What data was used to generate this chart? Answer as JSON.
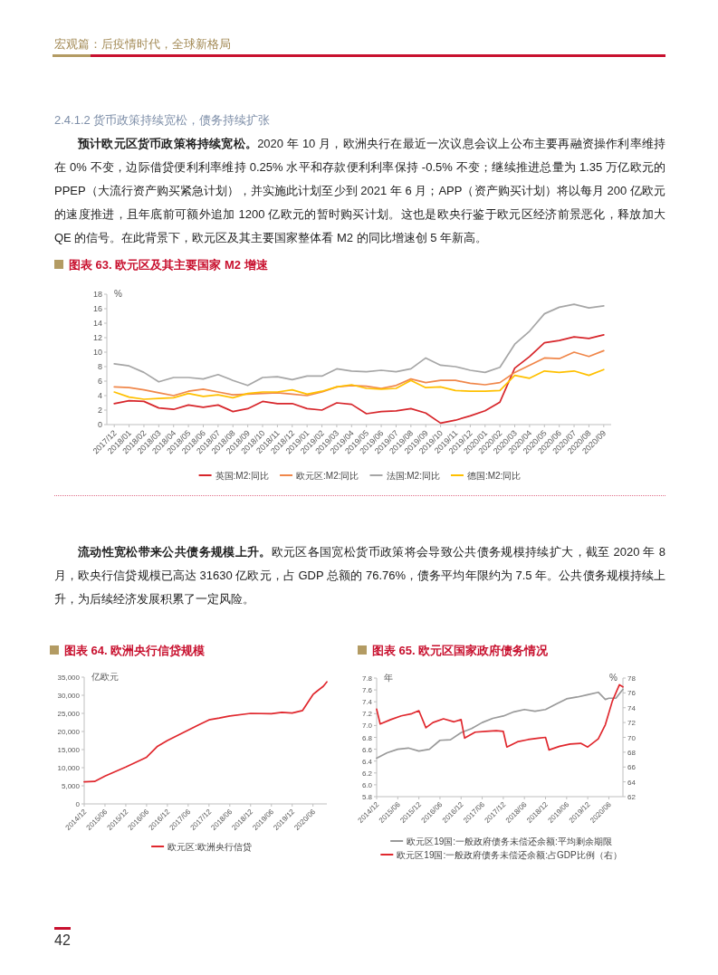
{
  "chart_data": [
    {
      "type": "line",
      "title": "图表 63. 欧元区及其主要国家 M2 增速",
      "ylabel": "%",
      "categories": [
        "2017/12",
        "2018/01",
        "2018/02",
        "2018/03",
        "2018/04",
        "2018/05",
        "2018/06",
        "2018/07",
        "2018/08",
        "2018/09",
        "2018/10",
        "2018/11",
        "2018/12",
        "2019/01",
        "2019/02",
        "2019/03",
        "2019/04",
        "2019/05",
        "2019/06",
        "2019/07",
        "2019/08",
        "2019/09",
        "2019/10",
        "2019/11",
        "2019/12",
        "2020/01",
        "2020/02",
        "2020/03",
        "2020/04",
        "2020/05",
        "2020/06",
        "2020/07",
        "2020/08",
        "2020/09"
      ],
      "series": [
        {
          "name": "英国:M2:同比",
          "color": "#d7262b",
          "values": [
            2.9,
            3.3,
            3.2,
            2.3,
            2.1,
            2.7,
            2.4,
            2.7,
            1.8,
            2.2,
            3.2,
            2.9,
            2.9,
            2.2,
            2.0,
            3.0,
            2.8,
            1.5,
            1.8,
            1.9,
            2.2,
            1.6,
            0.2,
            0.6,
            1.2,
            1.9,
            3.1,
            7.8,
            9.4,
            11.3,
            11.6,
            12.1,
            11.9,
            12.4
          ]
        },
        {
          "name": "欧元区:M2:同比",
          "color": "#f0874a",
          "values": [
            5.2,
            5.1,
            4.8,
            4.4,
            4.0,
            4.6,
            4.9,
            4.5,
            4.1,
            4.2,
            4.3,
            4.4,
            4.2,
            4.0,
            4.5,
            5.2,
            5.4,
            5.3,
            5.0,
            5.4,
            6.3,
            5.8,
            6.1,
            6.1,
            5.7,
            5.5,
            5.8,
            7.2,
            8.2,
            9.2,
            9.1,
            10.0,
            9.4,
            10.2
          ]
        },
        {
          "name": "法国:M2:同比",
          "color": "#a6a6a6",
          "values": [
            8.4,
            8.1,
            7.2,
            5.9,
            6.5,
            6.5,
            6.3,
            6.9,
            6.1,
            5.4,
            6.5,
            6.6,
            6.2,
            6.7,
            6.7,
            7.7,
            7.4,
            7.3,
            7.5,
            7.3,
            7.7,
            9.2,
            8.2,
            8.0,
            7.5,
            7.2,
            7.9,
            11.1,
            12.9,
            15.3,
            16.2,
            16.6,
            16.1,
            16.4
          ]
        },
        {
          "name": "德国:M2:同比",
          "color": "#ffc000",
          "values": [
            4.5,
            3.8,
            3.5,
            3.6,
            3.7,
            4.3,
            3.9,
            4.1,
            3.7,
            4.3,
            4.5,
            4.5,
            4.8,
            4.2,
            4.6,
            5.2,
            5.5,
            5.0,
            4.9,
            5.0,
            6.1,
            5.1,
            5.2,
            4.7,
            4.6,
            4.6,
            4.7,
            6.8,
            6.4,
            7.4,
            7.2,
            7.4,
            6.8,
            7.6
          ]
        }
      ],
      "ylim": [
        0,
        18
      ],
      "yticks": [
        0,
        2,
        4,
        6,
        8,
        10,
        12,
        14,
        16,
        18
      ],
      "legend": "bottom",
      "annotations": [
        "宏观篇：后疫情时代，全球新格局",
        "2.4.1.2 货币政策持续宽松，债务持续扩张",
        "预计欧元区货币政策将持续宽松。",
        "2020 年 10 月，欧洲央行在最近一次议息会议上公布主要再融资操作利率维持在 0% 不变，边际借贷便利利率维持 0.25% 水平和存款便利利率保持 -0.5% 不变；继续推进总量为 1.35 万亿欧元的 PPEP（大流行资产购买紧急计划），并实施此计划至少到 2021 年 6 月；APP（资产购买计划）将以每月 200 亿欧元的速度推进，且年底前可额外追加 1200 亿欧元的暂时购买计划。这也是欧央行鉴于欧元区经济前景恶化，释放加大 QE 的信号。在此背景下，欧元区及其主要国家整体看 M2 的同比增速创 5 年新高。"
      ]
    },
    {
      "type": "line",
      "title": "图表 64. 欧洲央行信贷规模",
      "ylabel": "亿欧元",
      "x": [
        "2014-12",
        "2015-03",
        "2015-06",
        "2015-12",
        "2016-06",
        "2016-09",
        "2016-12",
        "2017-06",
        "2017-09",
        "2017-12",
        "2018-03",
        "2018-06",
        "2018-12",
        "2019-06",
        "2019-09",
        "2019-12",
        "2020-03",
        "2020-06",
        "2020-07",
        "2020-09",
        "2020-10"
      ],
      "series": [
        {
          "name": "欧元区:欧洲央行信贷",
          "color": "#e0282e",
          "values": [
            6100,
            6200,
            7700,
            10200,
            12900,
            15800,
            17500,
            20400,
            21800,
            23200,
            23700,
            24300,
            25000,
            24900,
            25300,
            25100,
            25800,
            30200,
            31000,
            32500,
            33700
          ]
        }
      ],
      "xlim": [
        "2014-12",
        "2020-10"
      ],
      "xticks": [
        {
          "value": "2014-12",
          "label": "2014/12"
        },
        {
          "value": "2015-06",
          "label": "2015/06"
        },
        {
          "value": "2015-12",
          "label": "2015/12"
        },
        {
          "value": "2016-06",
          "label": "2016/06"
        },
        {
          "value": "2016-12",
          "label": "2016/12"
        },
        {
          "value": "2017-06",
          "label": "2017/06"
        },
        {
          "value": "2017-12",
          "label": "2017/12"
        },
        {
          "value": "2018-06",
          "label": "2018/06"
        },
        {
          "value": "2018-12",
          "label": "2018/12"
        },
        {
          "value": "2019-06",
          "label": "2019/06"
        },
        {
          "value": "2019-12",
          "label": "2019/12"
        },
        {
          "value": "2020-06",
          "label": "2020/06"
        }
      ],
      "ylim": [
        0,
        35000
      ],
      "yticks": [
        0,
        {
          "value": 5000,
          "label": "5,000"
        },
        {
          "value": 10000,
          "label": "10,000"
        },
        {
          "value": 15000,
          "label": "15,000"
        },
        {
          "value": 20000,
          "label": "20,000"
        },
        {
          "value": 25000,
          "label": "25,000"
        },
        {
          "value": 30000,
          "label": "30,000"
        },
        {
          "value": 35000,
          "label": "35,000"
        }
      ],
      "legend": "bottom",
      "annotations": [
        "流动性宽松带来公共债务规模上升。",
        "欧元区各国宽松货币政策将会导致公共债务规模持续扩大，截至 2020 年 8 月，欧央行信贷规模已高达 31630 亿欧元，占 GDP 总额的 76.76%，债务平均年限约为 7.5 年。公共债务规模持续上升，为后续经济发展积累了一定风险。"
      ]
    },
    {
      "type": "line",
      "title": "图表 65. 欧元区国家政府债务情况",
      "ylabel": "年",
      "y2label": "%",
      "series": [
        {
          "name": "欧元区19国:一般政府债务未偿还余额:平均剩余期限",
          "color": "#9a9a9a",
          "x": [
            "2014-12",
            "2015-03",
            "2015-06",
            "2015-09",
            "2015-12",
            "2016-03",
            "2016-06",
            "2016-09",
            "2016-12",
            "2017-03",
            "2017-06",
            "2017-09",
            "2017-12",
            "2018-03",
            "2018-06",
            "2018-09",
            "2018-12",
            "2019-03",
            "2019-06",
            "2019-09",
            "2019-12",
            "2020-03",
            "2020-05",
            "2020-06",
            "2020-08",
            "2020-10"
          ],
          "values": [
            6.45,
            6.54,
            6.6,
            6.62,
            6.57,
            6.6,
            6.75,
            6.76,
            6.88,
            6.95,
            7.05,
            7.12,
            7.16,
            7.23,
            7.27,
            7.24,
            7.27,
            7.36,
            7.45,
            7.48,
            7.52,
            7.56,
            7.44,
            7.46,
            7.46,
            7.61
          ]
        },
        {
          "name": "欧元区19国:一般政府债务未偿还余额:占GDP比例（右）",
          "color": "#e0282e",
          "axis": "y2",
          "x": [
            "2014-12",
            "2015-01",
            "2015-04",
            "2015-07",
            "2015-10",
            "2015-12",
            "2016-02",
            "2016-04",
            "2016-07",
            "2016-10",
            "2016-12",
            "2017-01",
            "2017-04",
            "2017-07",
            "2017-10",
            "2017-12",
            "2018-01",
            "2018-04",
            "2018-07",
            "2018-10",
            "2018-12",
            "2019-01",
            "2019-04",
            "2019-07",
            "2019-10",
            "2019-12",
            "2020-03",
            "2020-05",
            "2020-07",
            "2020-09",
            "2020-10"
          ],
          "values": [
            73.8,
            71.8,
            72.4,
            72.9,
            73.2,
            73.6,
            71.3,
            72.0,
            72.5,
            72.1,
            72.4,
            69.9,
            70.7,
            70.8,
            70.9,
            70.8,
            68.7,
            69.4,
            69.7,
            69.9,
            70.0,
            68.3,
            68.8,
            69.1,
            69.2,
            68.7,
            69.8,
            71.7,
            74.9,
            77.1,
            76.8
          ]
        }
      ],
      "xlim": [
        "2014-12",
        "2020-10"
      ],
      "xticks": [
        {
          "value": "2014-12",
          "label": "2014/12"
        },
        {
          "value": "2015-06",
          "label": "2015/06"
        },
        {
          "value": "2015-12",
          "label": "2015/12"
        },
        {
          "value": "2016-06",
          "label": "2016/06"
        },
        {
          "value": "2016-12",
          "label": "2016/12"
        },
        {
          "value": "2017-06",
          "label": "2017/06"
        },
        {
          "value": "2017-12",
          "label": "2017/12"
        },
        {
          "value": "2018-06",
          "label": "2018/06"
        },
        {
          "value": "2018-12",
          "label": "2018/12"
        },
        {
          "value": "2019-06",
          "label": "2019/06"
        },
        {
          "value": "2019-12",
          "label": "2019/12"
        },
        {
          "value": "2020-06",
          "label": "2020/06"
        }
      ],
      "ylim": [
        5.8,
        7.8
      ],
      "yticks": [
        5.8,
        {
          "value": 6,
          "label": "6.0"
        },
        6.2,
        6.4,
        6.6,
        6.8,
        {
          "value": 7,
          "label": "7.0"
        },
        7.2,
        7.4,
        7.6,
        7.8
      ],
      "y2lim": [
        62,
        78
      ],
      "y2ticks": [
        62,
        64,
        66,
        68,
        70,
        72,
        74,
        76,
        78
      ],
      "legend": "bottom",
      "annotations": [
        "42"
      ]
    }
  ]
}
